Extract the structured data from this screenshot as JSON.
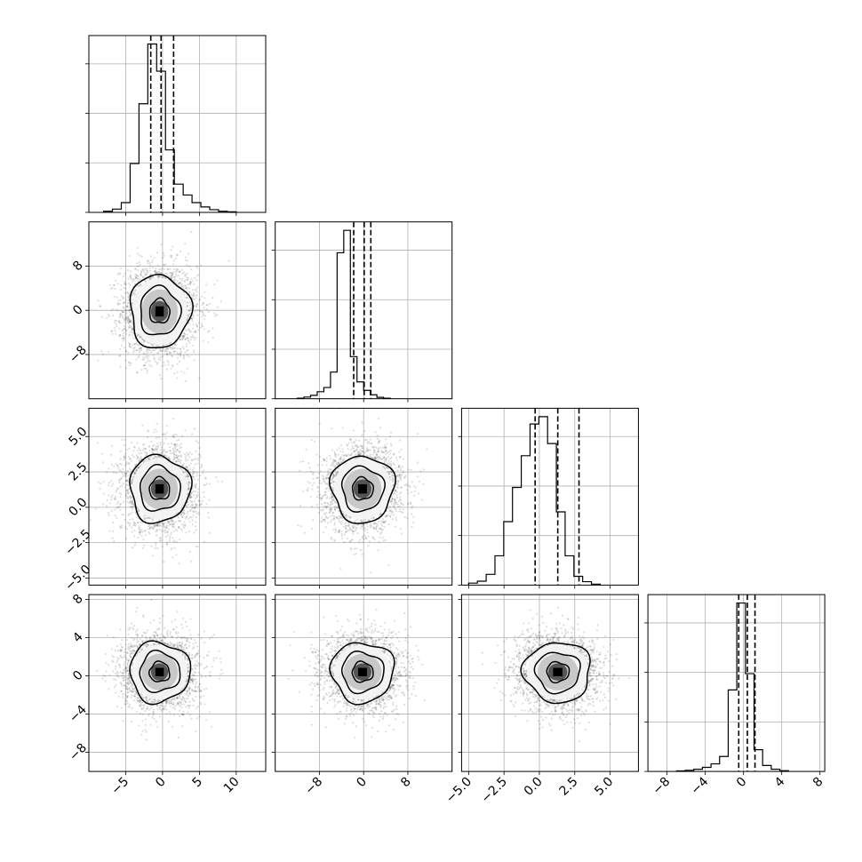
{
  "chart_data": {
    "type": "corner",
    "n_params": 4,
    "params": [
      {
        "range": [
          -10,
          14
        ],
        "ticks": [
          -5,
          0,
          5,
          10
        ],
        "tick_labels": [
          "−5",
          "0",
          "5",
          "10"
        ],
        "quantiles": [
          -1.6,
          -0.2,
          1.5
        ],
        "hist": {
          "edges_start": -8,
          "bin_width": 1.2,
          "heights": [
            2,
            6,
            18,
            90,
            200,
            310,
            260,
            115,
            52,
            32,
            18,
            10,
            5,
            2,
            1
          ]
        }
      },
      {
        "range": [
          -16,
          16
        ],
        "ticks": [
          -8,
          0,
          8
        ],
        "tick_labels": [
          "−8",
          "0",
          "8"
        ],
        "quantiles": [
          -1.8,
          0.1,
          1.3
        ],
        "hist": {
          "edges_start": -12,
          "bin_width": 1.2,
          "heights": [
            2,
            6,
            12,
            25,
            40,
            95,
            520,
            600,
            150,
            60,
            30,
            14,
            5,
            2
          ]
        }
      },
      {
        "range": [
          -5.5,
          7
        ],
        "ticks": [
          -5,
          -2.5,
          0,
          2.5,
          5
        ],
        "tick_labels": [
          "−5.0",
          "−2.5",
          "0.0",
          "2.5",
          "5.0"
        ],
        "quantiles": [
          -0.3,
          1.3,
          2.8
        ],
        "hist": {
          "edges_start": -5,
          "bin_width": 0.62,
          "heights": [
            4,
            8,
            22,
            60,
            130,
            200,
            265,
            330,
            345,
            290,
            150,
            60,
            18,
            7,
            2
          ]
        }
      },
      {
        "range": [
          -10,
          8.5
        ],
        "ticks": [
          -8,
          -4,
          0,
          4,
          8
        ],
        "tick_labels": [
          "−8",
          "−4",
          "0",
          "4",
          "8"
        ],
        "quantiles": [
          -0.5,
          0.4,
          1.2
        ],
        "hist": {
          "edges_start": -7,
          "bin_width": 0.9,
          "heights": [
            2,
            4,
            8,
            15,
            28,
            55,
            300,
            620,
            360,
            80,
            22,
            8,
            3
          ]
        }
      }
    ],
    "y_tick_labels": {
      "1": [
        "8",
        "0",
        "−8"
      ],
      "2": [
        "5.0",
        "2.5",
        "0.0",
        "−2.5",
        "−5.0"
      ],
      "3": [
        "8",
        "4",
        "0",
        "−4",
        "−8"
      ]
    },
    "pairs": [
      {
        "row": 1,
        "col": 0,
        "mean": [
          -0.4,
          -0.2
        ],
        "sd": [
          2.6,
          4.2
        ],
        "rho": 0.0,
        "n": 2500
      },
      {
        "row": 2,
        "col": 0,
        "mean": [
          -0.4,
          1.3
        ],
        "sd": [
          2.6,
          1.5
        ],
        "rho": 0.0,
        "n": 2500
      },
      {
        "row": 3,
        "col": 0,
        "mean": [
          -0.4,
          0.4
        ],
        "sd": [
          2.6,
          2.0
        ],
        "rho": 0.0,
        "n": 2500
      },
      {
        "row": 2,
        "col": 1,
        "mean": [
          -0.2,
          1.3
        ],
        "sd": [
          3.6,
          1.5
        ],
        "rho": 0.05,
        "n": 2500
      },
      {
        "row": 3,
        "col": 1,
        "mean": [
          -0.2,
          0.4
        ],
        "sd": [
          3.6,
          2.0
        ],
        "rho": 0.0,
        "n": 2500
      },
      {
        "row": 3,
        "col": 2,
        "mean": [
          1.3,
          0.4
        ],
        "sd": [
          1.5,
          2.0
        ],
        "rho": 0.0,
        "n": 2500
      }
    ],
    "contour_levels_sigma": [
      0.5,
      1.0,
      1.5
    ],
    "grid": true,
    "colors": {
      "points": "#000000",
      "contour": "#000000",
      "hist": "#000000",
      "grid": "#b0b0b0"
    }
  }
}
